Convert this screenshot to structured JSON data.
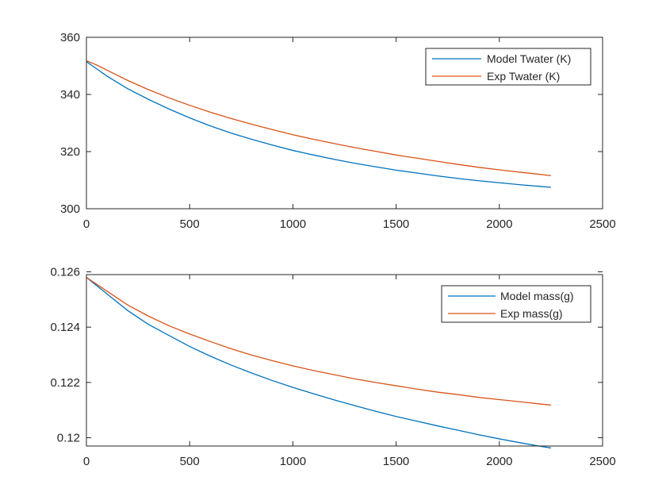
{
  "chart_data": [
    {
      "type": "line",
      "title": "",
      "xlabel": "",
      "ylabel": "",
      "xlim": [
        0,
        2500
      ],
      "ylim": [
        300,
        360
      ],
      "xticks": [
        "0",
        "500",
        "1000",
        "1500",
        "2000",
        "2500"
      ],
      "yticks": [
        "300",
        "320",
        "340",
        "360"
      ],
      "grid": false,
      "legend_position": "top-right",
      "series": [
        {
          "name": "Model Twater (K)",
          "color": "#0072BD",
          "x": [
            0,
            100,
            200,
            300,
            400,
            500,
            600,
            700,
            800,
            900,
            1000,
            1100,
            1200,
            1300,
            1400,
            1500,
            1600,
            1700,
            1800,
            1900,
            2000,
            2100,
            2200,
            2250
          ],
          "y": [
            351.5,
            346.4,
            342.0,
            338.3,
            334.9,
            331.8,
            329.0,
            326.5,
            324.3,
            322.3,
            320.4,
            318.8,
            317.3,
            315.9,
            314.7,
            313.5,
            312.5,
            311.5,
            310.6,
            309.8,
            309.1,
            308.4,
            307.8,
            307.5
          ]
        },
        {
          "name": "Exp Twater (K)",
          "color": "#D95319",
          "x": [
            0,
            50,
            100,
            200,
            300,
            400,
            500,
            600,
            700,
            800,
            900,
            1000,
            1100,
            1200,
            1300,
            1400,
            1500,
            1600,
            1700,
            1800,
            1900,
            2000,
            2100,
            2200,
            2250
          ],
          "y": [
            351.8,
            350.3,
            348.5,
            344.9,
            341.7,
            338.8,
            336.2,
            333.8,
            331.6,
            329.6,
            327.7,
            325.9,
            324.3,
            322.8,
            321.4,
            320.1,
            318.8,
            317.7,
            316.6,
            315.5,
            314.5,
            313.6,
            312.8,
            312.0,
            311.6
          ]
        }
      ]
    },
    {
      "type": "line",
      "title": "",
      "xlabel": "",
      "ylabel": "",
      "xlim": [
        0,
        2500
      ],
      "ylim": [
        0.1197,
        0.1259
      ],
      "xticks": [
        "0",
        "500",
        "1000",
        "1500",
        "2000",
        "2500"
      ],
      "yticks": [
        "0.12",
        "0.122",
        "0.124",
        "0.126"
      ],
      "ytick_values": [
        0.12,
        0.122,
        0.124,
        0.126
      ],
      "grid": false,
      "legend_position": "top-right",
      "series": [
        {
          "name": "Model mass(g)",
          "color": "#0072BD",
          "x": [
            0,
            100,
            200,
            300,
            400,
            500,
            600,
            700,
            800,
            900,
            1000,
            1100,
            1200,
            1300,
            1400,
            1500,
            1600,
            1700,
            1800,
            1900,
            2000,
            2100,
            2200,
            2250
          ],
          "y": [
            0.1258,
            0.1252,
            0.1246,
            0.1241,
            0.1237,
            0.1233,
            0.12295,
            0.12263,
            0.12234,
            0.12207,
            0.12182,
            0.12159,
            0.12137,
            0.12116,
            0.12096,
            0.12077,
            0.1206,
            0.12043,
            0.12027,
            0.12011,
            0.11996,
            0.11982,
            0.11969,
            0.11963
          ]
        },
        {
          "name": "Exp mass(g)",
          "color": "#D95319",
          "x": [
            0,
            100,
            200,
            300,
            400,
            500,
            600,
            700,
            800,
            900,
            1000,
            1100,
            1200,
            1300,
            1400,
            1500,
            1600,
            1700,
            1800,
            1900,
            2000,
            2100,
            2200,
            2250
          ],
          "y": [
            0.1258,
            0.1253,
            0.1248,
            0.1244,
            0.12405,
            0.12375,
            0.12348,
            0.12322,
            0.12299,
            0.12279,
            0.1226,
            0.12243,
            0.12228,
            0.12213,
            0.122,
            0.12188,
            0.12176,
            0.12165,
            0.12156,
            0.12146,
            0.12138,
            0.1213,
            0.12122,
            0.12118
          ]
        }
      ]
    }
  ]
}
